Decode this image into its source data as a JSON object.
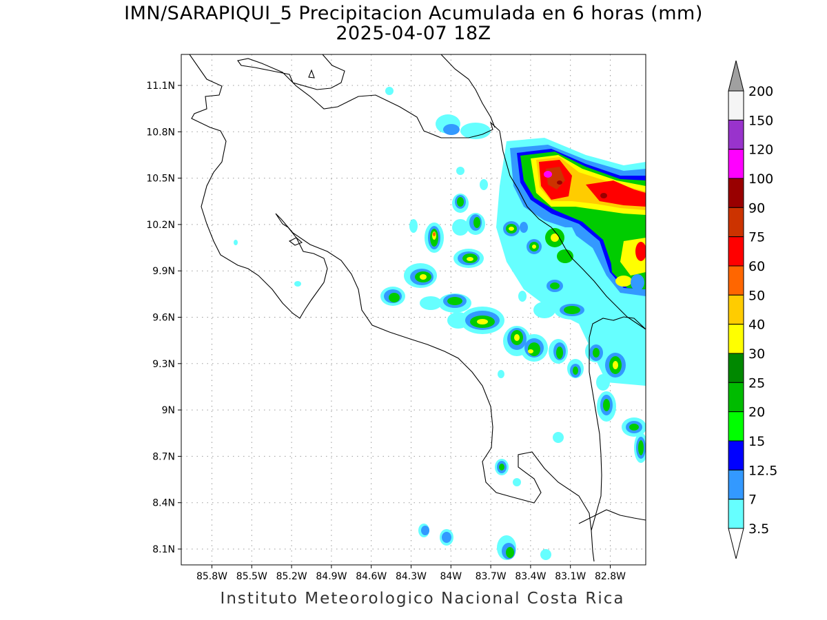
{
  "title": {
    "line1": "IMN/SARAPIQUI_5 Precipitacion Acumulada en 6 horas (mm)",
    "line2": "2025-04-07 18Z"
  },
  "credit": "Instituto Meteorologico Nacional Costa Rica",
  "axes": {
    "lon_ticks": [
      "85.8W",
      "85.5W",
      "85.2W",
      "84.9W",
      "84.6W",
      "84.3W",
      "84W",
      "83.7W",
      "83.4W",
      "83.1W",
      "82.8W"
    ],
    "lat_ticks": [
      "11.1N",
      "10.8N",
      "10.5N",
      "10.2N",
      "9.9N",
      "9.6N",
      "9.3N",
      "9N",
      "8.7N",
      "8.4N",
      "8.1N"
    ]
  },
  "colorbar": {
    "labels": [
      "200",
      "150",
      "120",
      "100",
      "90",
      "75",
      "60",
      "50",
      "40",
      "30",
      "25",
      "20",
      "15",
      "12.5",
      "7",
      "3.5"
    ],
    "colors": [
      "#a0a0a0",
      "#f5f5f5",
      "#9933cc",
      "#ff00ff",
      "#990000",
      "#cc3300",
      "#ff0000",
      "#ff6600",
      "#ffcc00",
      "#ffff00",
      "#008800",
      "#00bb00",
      "#00ff00",
      "#0000ff",
      "#3399ff",
      "#66ffff",
      "#ffffff"
    ]
  }
}
